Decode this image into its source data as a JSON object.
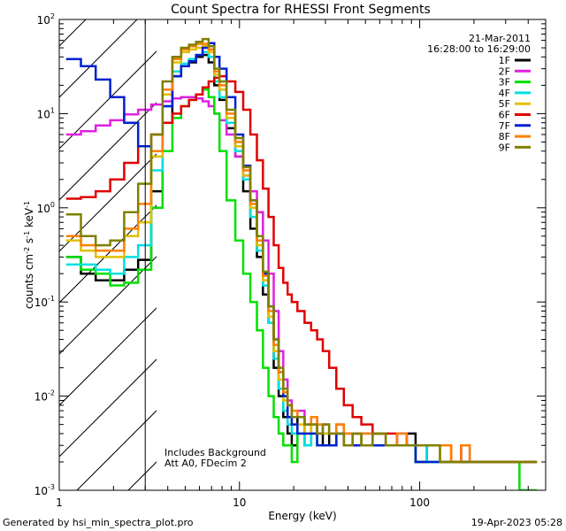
{
  "chart_data": {
    "type": "line",
    "title": "Count Spectra for RHESSI Front Segments",
    "xlabel": "Energy (keV)",
    "ylabel_base": "counts cm",
    "ylabel_exp1": "-2",
    "ylabel_mid": " s",
    "ylabel_exp2": "-1",
    "ylabel_end": " keV",
    "ylabel_exp3": "-1",
    "xscale": "log",
    "yscale": "log",
    "xlim": [
      1,
      500
    ],
    "ylim": [
      0.001,
      100
    ],
    "xticks": [
      {
        "v": 1,
        "label": "1"
      },
      {
        "v": 10,
        "label": "10"
      },
      {
        "v": 100,
        "label": "100"
      }
    ],
    "yticks": [
      {
        "v": 0.001,
        "base": "10",
        "exp": "-3"
      },
      {
        "v": 0.01,
        "base": "10",
        "exp": "-2"
      },
      {
        "v": 0.1,
        "base": "10",
        "exp": "-1"
      },
      {
        "v": 1,
        "base": "10",
        "exp": "0"
      },
      {
        "v": 10,
        "base": "10",
        "exp": "1"
      },
      {
        "v": 100,
        "base": "10",
        "exp": "2"
      }
    ],
    "vline_x": 3,
    "hatched_region": [
      1,
      3
    ],
    "date": "21-Mar-2011",
    "time_range": "16:28:00 to 16:29:00",
    "annotation_lines": [
      "Includes Background",
      "Att A0, FDecim 2"
    ],
    "footer_left": "Generated by hsi_min_spectra_plot.pro",
    "footer_right": "19-Apr-2023 05:28",
    "series": [
      {
        "name": "1F",
        "color": "#000000",
        "x": [
          1.2,
          1.45,
          1.75,
          2.1,
          2.5,
          3,
          3.5,
          4,
          4.5,
          5,
          5.5,
          6,
          6.5,
          7,
          7.5,
          8,
          9,
          10,
          11,
          12,
          13,
          14,
          15,
          16,
          17,
          18,
          19,
          20,
          22,
          24,
          26,
          28,
          30,
          33,
          36,
          40,
          45,
          50,
          60,
          70,
          80,
          90,
          100,
          120,
          140,
          160,
          180,
          200,
          240,
          280,
          320,
          400
        ],
        "y": [
          0.3,
          0.2,
          0.17,
          0.17,
          0.22,
          0.28,
          1.5,
          8,
          25,
          32,
          35,
          40,
          42,
          35,
          20,
          14,
          7,
          3.5,
          1.5,
          0.6,
          0.3,
          0.12,
          0.06,
          0.02,
          0.01,
          0.006,
          0.004,
          0.003,
          0.006,
          0.003,
          0.005,
          0.003,
          0.004,
          0.003,
          0.004,
          0.003,
          0.004,
          0.003,
          0.004,
          0.003,
          0.003,
          0.004,
          0.002,
          0.003,
          0.003,
          0.002,
          0.003,
          0.002,
          0.002,
          0.002,
          0.002,
          0.002
        ]
      },
      {
        "name": "2F",
        "color": "#e020e0",
        "x": [
          1.2,
          1.45,
          1.75,
          2.1,
          2.5,
          3,
          3.5,
          4,
          4.5,
          5,
          5.5,
          6,
          6.5,
          7,
          7.5,
          8,
          9,
          10,
          11,
          12,
          13,
          14,
          15,
          16,
          17,
          18,
          19,
          20,
          22,
          24,
          26,
          28,
          30,
          33,
          36,
          40,
          45,
          50,
          60,
          70,
          80,
          90,
          100,
          120,
          140,
          160,
          180,
          200,
          240,
          280,
          320,
          400
        ],
        "y": [
          6,
          6.5,
          7.5,
          8.5,
          9.8,
          11,
          12.5,
          13.5,
          14.5,
          15,
          15,
          14.5,
          13.5,
          12,
          10,
          8.5,
          6,
          3.5,
          2.2,
          1.5,
          0.9,
          0.45,
          0.2,
          0.08,
          0.03,
          0.015,
          0.009,
          0.006,
          0.007,
          0.005,
          0.006,
          0.004,
          0.005,
          0.004,
          0.005,
          0.004,
          0.004,
          0.004,
          0.004,
          0.003,
          0.004,
          0.003,
          0.003,
          0.003,
          0.003,
          0.002,
          0.003,
          0.002,
          0.002,
          0.002,
          0.002,
          0.002
        ]
      },
      {
        "name": "3F",
        "color": "#00e000",
        "x": [
          1.2,
          1.45,
          1.75,
          2.1,
          2.5,
          3,
          3.5,
          4,
          4.5,
          5,
          5.5,
          6,
          6.5,
          7,
          7.5,
          8,
          9,
          10,
          11,
          12,
          13,
          14,
          15,
          16,
          17,
          18,
          19,
          20,
          22,
          24,
          26,
          28,
          30,
          33,
          36,
          40,
          45,
          50,
          60,
          70,
          80,
          90,
          100,
          120,
          140,
          160,
          180,
          200,
          240,
          280,
          320,
          400
        ],
        "y": [
          0.3,
          0.22,
          0.2,
          0.15,
          0.16,
          0.22,
          1,
          4,
          9,
          12,
          14,
          16,
          18,
          15,
          10,
          4,
          1.2,
          0.45,
          0.2,
          0.1,
          0.05,
          0.02,
          0.01,
          0.006,
          0.004,
          0.003,
          0.003,
          0.002,
          0.004,
          0.003,
          0.004,
          0.003,
          0.003,
          0.003,
          0.004,
          0.003,
          0.003,
          0.003,
          0.003,
          0.003,
          0.003,
          0.003,
          0.002,
          0.002,
          0.002,
          0.002,
          0.002,
          0.002,
          0.002,
          0.002,
          0.002,
          0.001
        ]
      },
      {
        "name": "4F",
        "color": "#00e0e0",
        "x": [
          1.2,
          1.45,
          1.75,
          2.1,
          2.5,
          3,
          3.5,
          4,
          4.5,
          5,
          5.5,
          6,
          6.5,
          7,
          7.5,
          8,
          9,
          10,
          11,
          12,
          13,
          14,
          15,
          16,
          17,
          18,
          19,
          20,
          22,
          24,
          26,
          28,
          30,
          33,
          36,
          40,
          45,
          50,
          60,
          70,
          80,
          90,
          100,
          120,
          140,
          160,
          180,
          200,
          240,
          280,
          320,
          400
        ],
        "y": [
          0.25,
          0.25,
          0.22,
          0.2,
          0.3,
          0.4,
          2.5,
          12,
          28,
          34,
          38,
          42,
          45,
          40,
          22,
          15,
          8,
          4,
          2,
          0.8,
          0.35,
          0.15,
          0.06,
          0.025,
          0.012,
          0.007,
          0.005,
          0.004,
          0.004,
          0.003,
          0.004,
          0.003,
          0.003,
          0.003,
          0.004,
          0.003,
          0.003,
          0.003,
          0.003,
          0.003,
          0.003,
          0.003,
          0.003,
          0.002,
          0.002,
          0.002,
          0.002,
          0.002,
          0.002,
          0.002,
          0.002,
          0.002
        ]
      },
      {
        "name": "5F",
        "color": "#e0c000",
        "x": [
          1.2,
          1.45,
          1.75,
          2.1,
          2.5,
          3,
          3.5,
          4,
          4.5,
          5,
          5.5,
          6,
          6.5,
          7,
          7.5,
          8,
          9,
          10,
          11,
          12,
          13,
          14,
          15,
          16,
          17,
          18,
          19,
          20,
          22,
          24,
          26,
          28,
          30,
          33,
          36,
          40,
          45,
          50,
          60,
          70,
          80,
          90,
          100,
          120,
          140,
          160,
          180,
          200,
          240,
          280,
          320,
          400
        ],
        "y": [
          0.45,
          0.35,
          0.3,
          0.3,
          0.5,
          0.7,
          3.5,
          16,
          35,
          45,
          48,
          50,
          52,
          45,
          26,
          18,
          9,
          4.5,
          2.2,
          1,
          0.4,
          0.17,
          0.07,
          0.03,
          0.015,
          0.009,
          0.006,
          0.005,
          0.005,
          0.004,
          0.005,
          0.004,
          0.004,
          0.004,
          0.004,
          0.003,
          0.004,
          0.003,
          0.004,
          0.003,
          0.003,
          0.003,
          0.003,
          0.003,
          0.002,
          0.002,
          0.002,
          0.002,
          0.002,
          0.002,
          0.002,
          0.002
        ]
      },
      {
        "name": "6F",
        "color": "#e00000",
        "x": [
          1.2,
          1.45,
          1.75,
          2.1,
          2.5,
          3,
          3.5,
          4,
          4.5,
          5,
          5.5,
          6,
          6.5,
          7,
          7.5,
          8,
          9,
          10,
          11,
          12,
          13,
          14,
          15,
          16,
          17,
          18,
          19,
          20,
          22,
          24,
          26,
          28,
          30,
          33,
          36,
          40,
          45,
          50,
          60,
          70,
          80,
          90,
          100,
          120,
          140,
          160,
          180,
          200,
          240,
          280,
          320,
          400
        ],
        "y": [
          1.25,
          1.3,
          1.5,
          2,
          3,
          4.5,
          6,
          8,
          10,
          12,
          14,
          16,
          19,
          22,
          24,
          25,
          22,
          17,
          11,
          6,
          3.2,
          1.6,
          0.8,
          0.4,
          0.23,
          0.16,
          0.12,
          0.1,
          0.08,
          0.06,
          0.05,
          0.04,
          0.03,
          0.02,
          0.012,
          0.008,
          0.006,
          0.005,
          0.004,
          0.004,
          0.003,
          0.003,
          0.003,
          0.003,
          0.003,
          0.002,
          0.002,
          0.002,
          0.002,
          0.002,
          0.002,
          0.002
        ]
      },
      {
        "name": "7F",
        "color": "#0020d0",
        "x": [
          1.2,
          1.45,
          1.75,
          2.1,
          2.5,
          3,
          3.5,
          4,
          4.5,
          5,
          5.5,
          6,
          6.5,
          7,
          7.5,
          8,
          9,
          10,
          11,
          12,
          13,
          14,
          15,
          16,
          17,
          18,
          19,
          20,
          22,
          24,
          26,
          28,
          30,
          33,
          36,
          40,
          45,
          50,
          60,
          70,
          80,
          90,
          100,
          120,
          140,
          160,
          180,
          200,
          240,
          280,
          320,
          400
        ],
        "y": [
          38,
          32,
          23,
          15,
          8,
          4.5,
          4,
          12,
          25,
          32,
          36,
          42,
          50,
          56,
          40,
          30,
          15,
          6,
          2.8,
          1.2,
          0.5,
          0.2,
          0.09,
          0.04,
          0.018,
          0.01,
          0.006,
          0.005,
          0.004,
          0.004,
          0.004,
          0.003,
          0.003,
          0.003,
          0.004,
          0.003,
          0.003,
          0.003,
          0.003,
          0.003,
          0.003,
          0.003,
          0.002,
          0.002,
          0.002,
          0.002,
          0.002,
          0.002,
          0.002,
          0.002,
          0.002,
          0.002
        ]
      },
      {
        "name": "8F",
        "color": "#ff8000",
        "x": [
          1.2,
          1.45,
          1.75,
          2.1,
          2.5,
          3,
          3.5,
          4,
          4.5,
          5,
          5.5,
          6,
          6.5,
          7,
          7.5,
          8,
          9,
          10,
          11,
          12,
          13,
          14,
          15,
          16,
          17,
          18,
          19,
          20,
          22,
          24,
          26,
          28,
          30,
          33,
          36,
          40,
          45,
          50,
          60,
          70,
          80,
          90,
          100,
          120,
          140,
          160,
          180,
          200,
          240,
          280,
          320,
          400
        ],
        "y": [
          0.5,
          0.4,
          0.35,
          0.35,
          0.6,
          1.1,
          4,
          18,
          38,
          48,
          52,
          55,
          55,
          48,
          28,
          20,
          10,
          5,
          2.5,
          1.1,
          0.45,
          0.19,
          0.08,
          0.035,
          0.018,
          0.011,
          0.008,
          0.007,
          0.006,
          0.005,
          0.006,
          0.005,
          0.005,
          0.004,
          0.005,
          0.004,
          0.004,
          0.004,
          0.004,
          0.003,
          0.004,
          0.003,
          0.003,
          0.003,
          0.003,
          0.002,
          0.003,
          0.002,
          0.002,
          0.002,
          0.002,
          0.002
        ]
      },
      {
        "name": "9F",
        "color": "#808000",
        "x": [
          1.2,
          1.45,
          1.75,
          2.1,
          2.5,
          3,
          3.5,
          4,
          4.5,
          5,
          5.5,
          6,
          6.5,
          7,
          7.5,
          8,
          9,
          10,
          11,
          12,
          13,
          14,
          15,
          16,
          17,
          18,
          19,
          20,
          22,
          24,
          26,
          28,
          30,
          33,
          36,
          40,
          45,
          50,
          60,
          70,
          80,
          90,
          100,
          120,
          140,
          160,
          180,
          200,
          240,
          280,
          320,
          400
        ],
        "y": [
          0.85,
          0.5,
          0.4,
          0.45,
          0.9,
          1.8,
          6,
          22,
          40,
          50,
          54,
          58,
          62,
          52,
          30,
          22,
          11,
          5.5,
          2.7,
          1.2,
          0.5,
          0.21,
          0.09,
          0.04,
          0.02,
          0.012,
          0.008,
          0.006,
          0.006,
          0.005,
          0.005,
          0.004,
          0.005,
          0.004,
          0.004,
          0.003,
          0.004,
          0.003,
          0.004,
          0.003,
          0.003,
          0.003,
          0.003,
          0.003,
          0.002,
          0.002,
          0.002,
          0.002,
          0.002,
          0.002,
          0.002,
          0.002
        ]
      }
    ]
  }
}
